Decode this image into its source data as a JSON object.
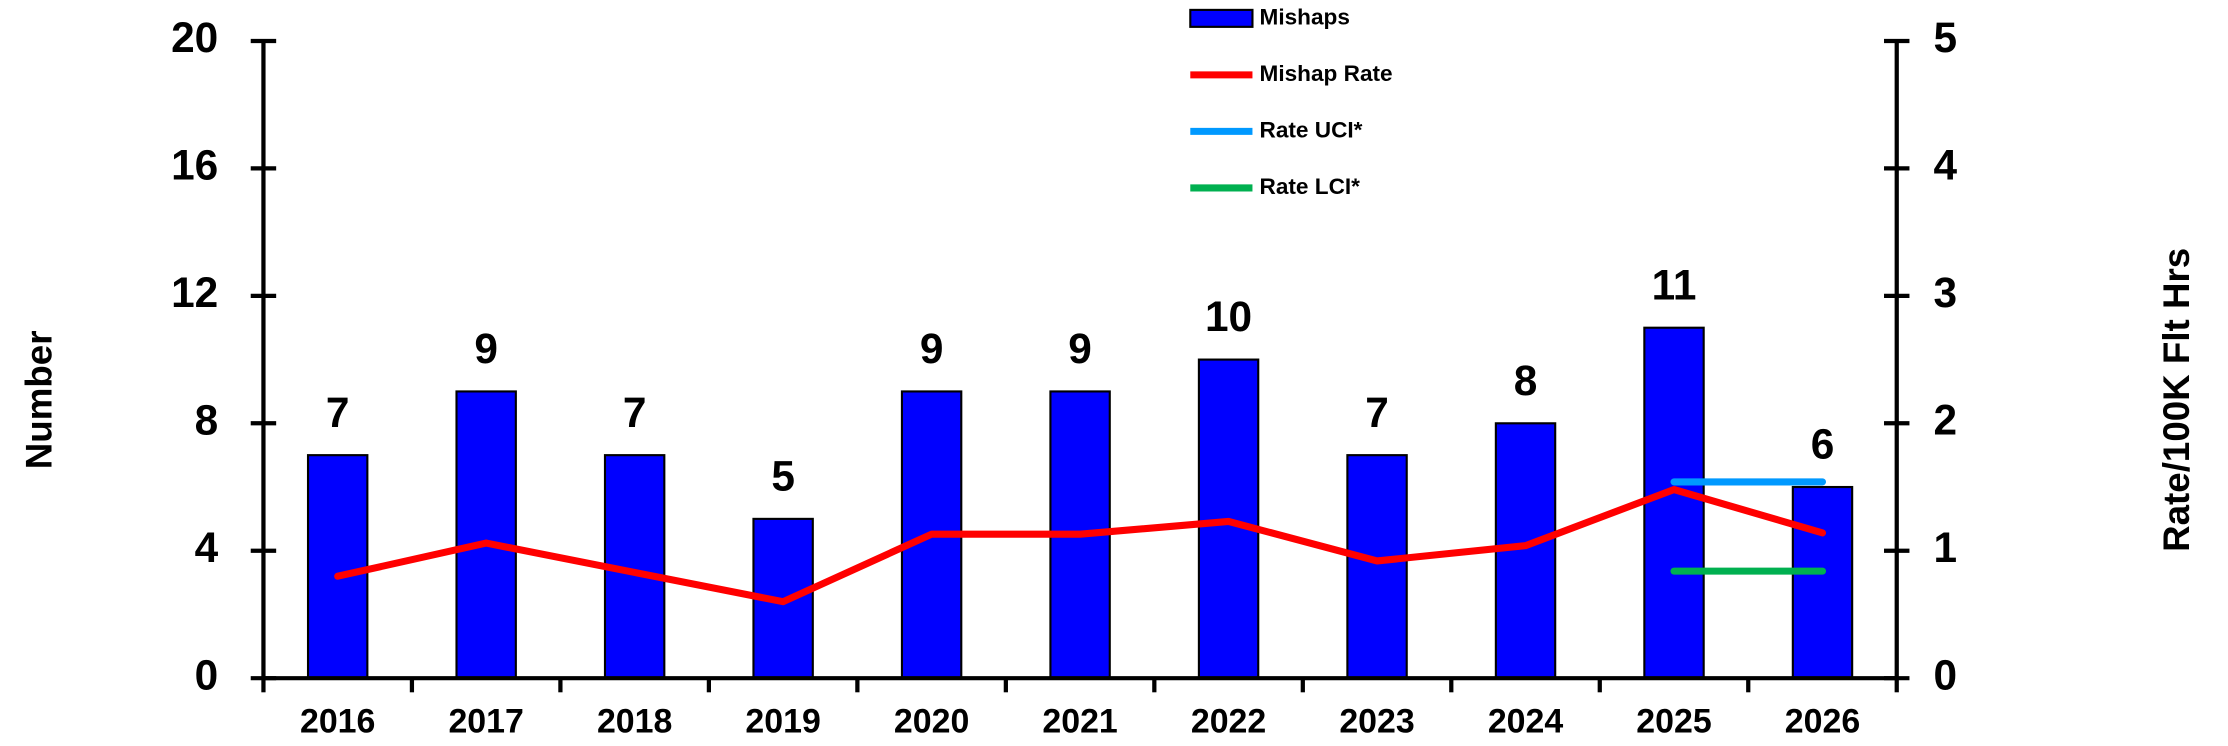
{
  "chart_data": {
    "type": "bar",
    "y_label": "Number",
    "y2_label": "Rate/100K Flt Hrs",
    "categories": [
      "2016",
      "2017",
      "2018",
      "2019",
      "2020",
      "2021",
      "2022",
      "2023",
      "2024",
      "2025",
      "2026"
    ],
    "series": [
      {
        "name": "Mishaps",
        "type": "bar",
        "color": "#0000ff",
        "values": [
          7,
          9,
          7,
          5,
          9,
          9,
          10,
          7,
          8,
          11,
          6
        ]
      },
      {
        "name": "Mishap Rate",
        "type": "line",
        "axis": "y2",
        "color": "#ff0000",
        "values": [
          0.8,
          1.06,
          0.83,
          0.6,
          1.13,
          1.13,
          1.23,
          0.92,
          1.04,
          1.48,
          1.14
        ]
      },
      {
        "name": "Rate UCI*",
        "type": "line",
        "axis": "y2",
        "color": "#0099ff",
        "values": [
          null,
          null,
          null,
          null,
          null,
          null,
          null,
          null,
          null,
          1.54,
          1.54
        ]
      },
      {
        "name": "Rate LCI*",
        "type": "line",
        "axis": "y2",
        "color": "#00b050",
        "values": [
          null,
          null,
          null,
          null,
          null,
          null,
          null,
          null,
          null,
          0.84,
          0.84
        ]
      }
    ],
    "ylim": [
      0,
      20
    ],
    "yticks": [
      0,
      4,
      8,
      12,
      16,
      20
    ],
    "y2lim": [
      0,
      5
    ],
    "y2ticks": [
      0,
      1,
      2,
      3,
      4,
      5
    ],
    "data_labels": true,
    "legend": "top"
  }
}
